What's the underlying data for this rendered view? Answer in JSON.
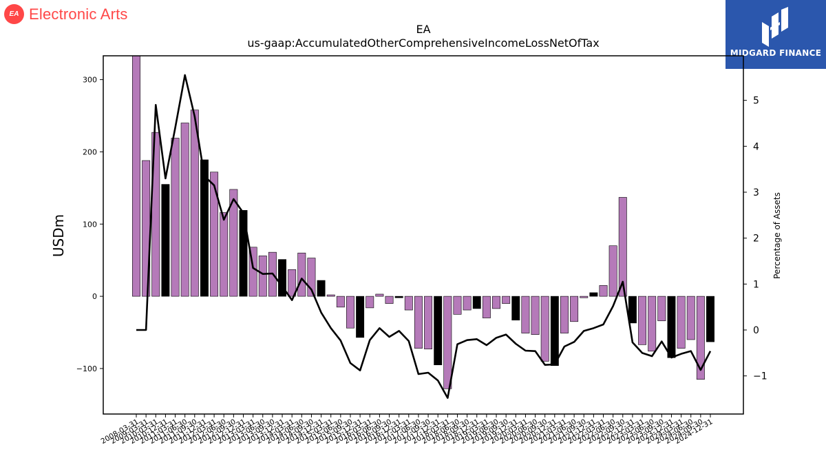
{
  "logos": {
    "left_badge": "EA",
    "left_name": "Electronic Arts",
    "right_name": "MIDGARD FINANCE"
  },
  "colors": {
    "bar_default": "#b57ab9",
    "bar_highlight": "#000000",
    "line": "#000000",
    "ea_brand": "#ff4747",
    "midgard_brand": "#2b57ad"
  },
  "chart_data": {
    "type": "bar",
    "title": "EA",
    "subtitle": "us-gaap:AccumulatedOtherComprehensiveIncomeLossNetOfTax",
    "ylabel": "USDm",
    "y2label": "Percentage of Assets",
    "ylim": [
      -163,
      333
    ],
    "y2lim": [
      -1.83,
      5.97
    ],
    "yticks": [
      -100,
      0,
      100,
      200,
      300
    ],
    "y2ticks": [
      -1,
      0,
      1,
      2,
      3,
      4,
      5
    ],
    "grid": false,
    "legend": "none",
    "categories": [
      "2008-03-31",
      "2009-03-31",
      "2010-03-31",
      "2010-12-31",
      "2011-03-31",
      "2011-06-30",
      "2011-09-30",
      "2011-12-31",
      "2012-03-31",
      "2012-06-30",
      "2012-09-30",
      "2012-12-31",
      "2013-03-31",
      "2013-06-30",
      "2013-09-30",
      "2013-12-31",
      "2014-03-31",
      "2014-06-30",
      "2014-09-30",
      "2014-12-31",
      "2015-03-31",
      "2015-06-30",
      "2015-09-30",
      "2015-12-31",
      "2016-03-31",
      "2016-06-30",
      "2016-09-30",
      "2016-12-31",
      "2017-03-31",
      "2017-06-30",
      "2017-09-30",
      "2017-12-31",
      "2018-03-31",
      "2018-06-30",
      "2018-09-30",
      "2018-12-31",
      "2019-03-31",
      "2019-06-30",
      "2019-09-30",
      "2019-12-31",
      "2020-03-31",
      "2020-06-30",
      "2020-09-30",
      "2020-12-31",
      "2021-03-31",
      "2021-06-30",
      "2021-09-30",
      "2021-12-31",
      "2022-03-31",
      "2022-06-30",
      "2022-09-30",
      "2022-12-31",
      "2023-03-31",
      "2023-06-30",
      "2023-09-30",
      "2023-12-31",
      "2024-03-31",
      "2024-06-30",
      "2024-09-30",
      "2024-12-31"
    ],
    "series": [
      {
        "kind": "bar",
        "axis": "left",
        "values": [
          333,
          188,
          227,
          155,
          219,
          240,
          258,
          189,
          172,
          116,
          148,
          119,
          68,
          56,
          61,
          51,
          37,
          60,
          53,
          22,
          2,
          -15,
          -44,
          -57,
          -16,
          3,
          -10,
          -2,
          -19,
          -72,
          -73,
          -95,
          -128,
          -25,
          -19,
          -17,
          -30,
          -17,
          -10,
          -33,
          -51,
          -53,
          -90,
          -96,
          -51,
          -35,
          -2,
          5,
          15,
          70,
          137,
          -37,
          -67,
          -76,
          -34,
          -85,
          -72,
          -60,
          -115,
          -63
        ],
        "highlighted": [
          3,
          7,
          11,
          15,
          19,
          23,
          27,
          31,
          35,
          39,
          43,
          47,
          51,
          55,
          59
        ]
      },
      {
        "kind": "line",
        "axis": "right",
        "values": [
          0.0,
          0.0,
          4.9,
          3.3,
          4.4,
          5.55,
          4.65,
          3.35,
          3.15,
          2.4,
          2.85,
          2.55,
          1.35,
          1.22,
          1.23,
          0.95,
          0.65,
          1.12,
          0.88,
          0.38,
          0.04,
          -0.23,
          -0.72,
          -0.88,
          -0.22,
          0.04,
          -0.15,
          -0.02,
          -0.24,
          -0.96,
          -0.93,
          -1.1,
          -1.48,
          -0.31,
          -0.22,
          -0.2,
          -0.33,
          -0.17,
          -0.1,
          -0.3,
          -0.45,
          -0.46,
          -0.76,
          -0.75,
          -0.36,
          -0.26,
          -0.02,
          0.04,
          0.12,
          0.52,
          1.05,
          -0.27,
          -0.5,
          -0.57,
          -0.25,
          -0.6,
          -0.52,
          -0.46,
          -0.87,
          -0.46
        ]
      }
    ]
  }
}
